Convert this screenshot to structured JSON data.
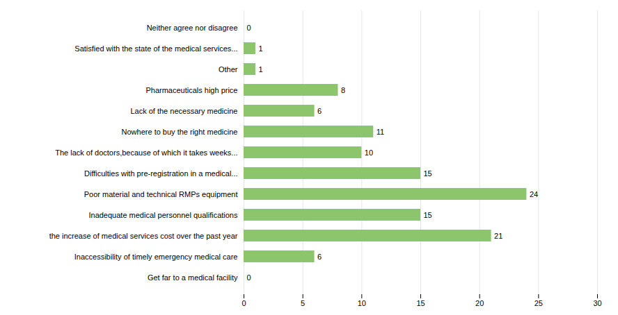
{
  "chart_data": {
    "type": "bar",
    "orientation": "horizontal",
    "categories": [
      "Neither agree nor disagree",
      "Satisfied with the state of the medical services...",
      "Other",
      "Pharmaceuticals high price",
      "Lack of the necessary medicine",
      "Nowhere to buy the right medicine",
      "The lack of doctors,because of which it takes weeks...",
      "Difficulties with pre-registration in a medical...",
      "Poor material and technical RMPs equipment",
      "Inadequate medical personnel qualifications",
      "the increase of medical services cost over the past year",
      "Inaccessibility of timely emergency medical care",
      "Get far to a medical facility"
    ],
    "values": [
      0,
      1,
      1,
      8,
      6,
      11,
      10,
      15,
      24,
      15,
      21,
      6,
      0
    ],
    "color": "#8dc56c",
    "xlim": [
      0,
      30
    ],
    "xticks": [
      0,
      5,
      10,
      15,
      20,
      25,
      30
    ],
    "grid": true,
    "data_labels": true
  }
}
